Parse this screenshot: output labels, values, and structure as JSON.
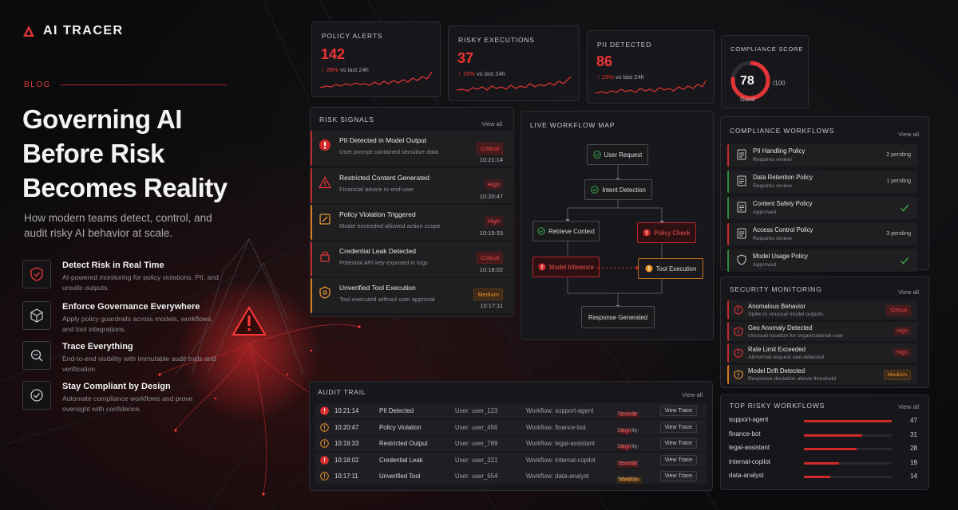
{
  "brand": {
    "name": "AI TRACER"
  },
  "hero": {
    "kicker": "BLOG",
    "title_lines": [
      "Governing AI",
      "Before Risk",
      "Becomes Reality"
    ],
    "subtitle": "How modern teams detect, control, and audit risky AI behavior at scale."
  },
  "features": [
    {
      "title": "Detect Risk in Real Time",
      "desc": "AI-powered monitoring for policy violations, PII, and unsafe outputs.",
      "icon": "shield-icon"
    },
    {
      "title": "Enforce Governance Everywhere",
      "desc": "Apply policy guardrails across models, workflows, and tool integrations.",
      "icon": "cube-icon"
    },
    {
      "title": "Trace Everything",
      "desc": "End-to-end visibility with immutable audit trails and verification.",
      "icon": "magnifier-icon"
    },
    {
      "title": "Stay Compliant by Design",
      "desc": "Automate compliance workflows and prove oversight with confidence.",
      "icon": "check-circle-icon"
    }
  ],
  "kpis": [
    {
      "label": "POLICY ALERTS",
      "value": "142",
      "delta": "28%",
      "delta_suffix": "vs last 24h"
    },
    {
      "label": "RISKY EXECUTIONS",
      "value": "37",
      "delta": "16%",
      "delta_suffix": "vs last 24h"
    },
    {
      "label": "PII DETECTED",
      "value": "86",
      "delta": "23%",
      "delta_suffix": "vs last 24h"
    }
  ],
  "compliance_score": {
    "label": "COMPLIANCE SCORE",
    "value": "78",
    "max": "/100",
    "status": "Good",
    "fraction": 0.78
  },
  "risk_signals": {
    "title": "RISK SIGNALS",
    "view_all": "View all",
    "items": [
      {
        "title": "PII Detected in Model Output",
        "desc": "User prompt contained sensitive data",
        "severity": "Critical",
        "time": "10:21:14"
      },
      {
        "title": "Restricted Content Generated",
        "desc": "Financial advice to end-user",
        "severity": "High",
        "time": "10:20:47"
      },
      {
        "title": "Policy Violation Triggered",
        "desc": "Model exceeded allowed action scope",
        "severity": "High",
        "time": "10:19:33"
      },
      {
        "title": "Credential Leak Detected",
        "desc": "Potential API key exposed in logs",
        "severity": "Critical",
        "time": "10:18:02"
      },
      {
        "title": "Unverified Tool Execution",
        "desc": "Tool executed without user approval",
        "severity": "Medium",
        "time": "10:17:11"
      }
    ]
  },
  "workflow_map": {
    "title": "LIVE WORKFLOW MAP",
    "nodes": {
      "user_request": "User Request",
      "intent_detection": "Intent Detection",
      "retrieve_context": "Retrieve Context",
      "policy_check": "Policy Check",
      "model_inference": "Model Inference",
      "tool_execution": "Tool Execution",
      "response_generated": "Response Generated"
    }
  },
  "compliance_workflows": {
    "title": "COMPLIANCE WORKFLOWS",
    "view_all": "View all",
    "items": [
      {
        "title": "PII Handling Policy",
        "desc": "Requires review",
        "status": "2 pending"
      },
      {
        "title": "Data Retention Policy",
        "desc": "Requires review",
        "status": "1 pending"
      },
      {
        "title": "Content Safety Policy",
        "desc": "Approved",
        "status": ""
      },
      {
        "title": "Access Control Policy",
        "desc": "Requires review",
        "status": "3 pending"
      },
      {
        "title": "Model Usage Policy",
        "desc": "Approved",
        "status": ""
      }
    ]
  },
  "security_monitoring": {
    "title": "SECURITY MONITORING",
    "view_all": "View all",
    "items": [
      {
        "title": "Anomalous Behavior",
        "desc": "Spike in unusual model outputs",
        "severity": "Critical"
      },
      {
        "title": "Geo Anomaly Detected",
        "desc": "Unusual location for organizational user",
        "severity": "High"
      },
      {
        "title": "Rate Limit Exceeded",
        "desc": "Abnormal request rate detected",
        "severity": "High"
      },
      {
        "title": "Model Drift Detected",
        "desc": "Response deviation above threshold",
        "severity": "Medium"
      }
    ]
  },
  "audit_trail": {
    "title": "AUDIT TRAIL",
    "view_all": "View all",
    "severity_label": "Severity:",
    "action_label": "View Trace",
    "rows": [
      {
        "time": "10:21:14",
        "event": "PII Detected",
        "user": "User: user_123",
        "workflow": "Workflow: support-agent",
        "severity": "Critical"
      },
      {
        "time": "10:20:47",
        "event": "Policy Violation",
        "user": "User: user_456",
        "workflow": "Workflow: finance-bot",
        "severity": "High"
      },
      {
        "time": "10:19:33",
        "event": "Restricted Output",
        "user": "User: user_789",
        "workflow": "Workflow: legal-assistant",
        "severity": "High"
      },
      {
        "time": "10:18:02",
        "event": "Credential Leak",
        "user": "User: user_321",
        "workflow": "Workflow: internal-copilot",
        "severity": "Critical"
      },
      {
        "time": "10:17:11",
        "event": "Unverified Tool",
        "user": "User: user_654",
        "workflow": "Workflow: data-analyst",
        "severity": "Medium"
      }
    ]
  },
  "top_risky_workflows": {
    "title": "TOP RISKY WORKFLOWS",
    "view_all": "View all",
    "items": [
      {
        "name": "support-agent",
        "value": 47
      },
      {
        "name": "finance-bot",
        "value": 31
      },
      {
        "name": "legal-assistant",
        "value": 28
      },
      {
        "name": "internal-copilot",
        "value": 19
      },
      {
        "name": "data-analyst",
        "value": 14
      }
    ]
  },
  "colors": {
    "accent": "#ee3434",
    "orange": "#d27a1c",
    "green": "#2f8a3a"
  }
}
